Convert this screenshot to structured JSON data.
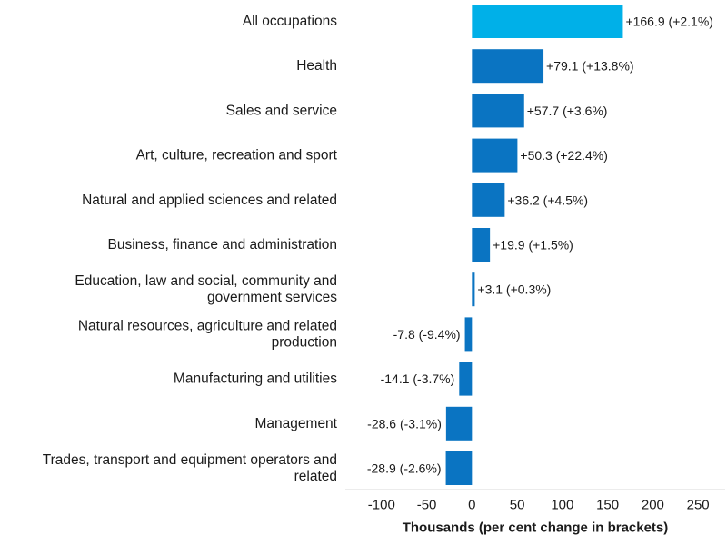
{
  "chart_data": {
    "type": "bar",
    "orientation": "horizontal",
    "title": "",
    "xlabel": "Thousands (per cent change in brackets)",
    "ylabel": "",
    "xlim": [
      -140,
      280
    ],
    "xticks": [
      -100,
      -50,
      0,
      50,
      100,
      150,
      200,
      250
    ],
    "grid": false,
    "highlight_color": "#00b0e8",
    "bar_color": "#0a74c2",
    "categories": [
      {
        "label": [
          "All occupations"
        ],
        "value": 166.9,
        "data_label": "+166.9 (+2.1%)",
        "highlight": true
      },
      {
        "label": [
          "Health"
        ],
        "value": 79.1,
        "data_label": "+79.1 (+13.8%)",
        "highlight": false
      },
      {
        "label": [
          "Sales and service"
        ],
        "value": 57.7,
        "data_label": "+57.7 (+3.6%)",
        "highlight": false
      },
      {
        "label": [
          "Art, culture, recreation and sport"
        ],
        "value": 50.3,
        "data_label": "+50.3 (+22.4%)",
        "highlight": false
      },
      {
        "label": [
          "Natural and applied sciences and related"
        ],
        "value": 36.2,
        "data_label": "+36.2 (+4.5%)",
        "highlight": false
      },
      {
        "label": [
          "Business, finance and administration"
        ],
        "value": 19.9,
        "data_label": "+19.9 (+1.5%)",
        "highlight": false
      },
      {
        "label": [
          "Education, law and social, community and",
          "government services"
        ],
        "value": 3.1,
        "data_label": "+3.1 (+0.3%)",
        "highlight": false
      },
      {
        "label": [
          "Natural resources, agriculture and related",
          "production"
        ],
        "value": -7.8,
        "data_label": "-7.8 (-9.4%)",
        "highlight": false
      },
      {
        "label": [
          "Manufacturing and utilities"
        ],
        "value": -14.1,
        "data_label": "-14.1 (-3.7%)",
        "highlight": false
      },
      {
        "label": [
          "Management"
        ],
        "value": -28.6,
        "data_label": "-28.6 (-3.1%)",
        "highlight": false
      },
      {
        "label": [
          "Trades, transport and equipment operators and",
          "related"
        ],
        "value": -28.9,
        "data_label": "-28.9 (-2.6%)",
        "highlight": false
      }
    ]
  }
}
